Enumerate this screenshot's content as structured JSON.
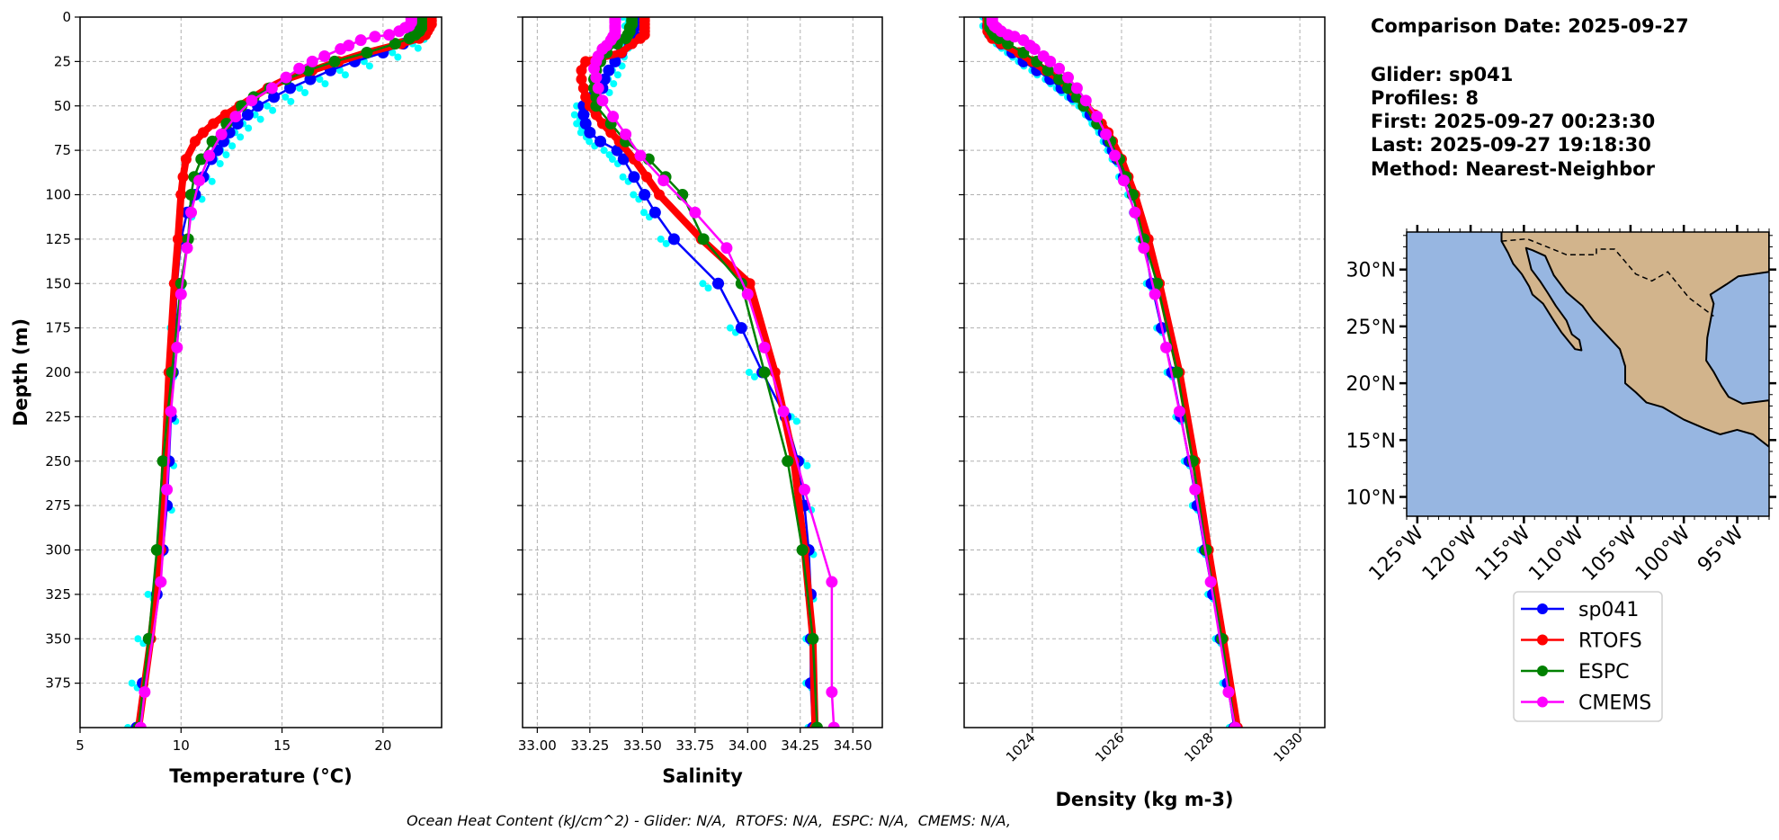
{
  "info": {
    "comparison_date": "Comparison Date: 2025-09-27",
    "glider": "Glider: sp041",
    "profiles": "Profiles: 8",
    "first": "First: 2025-09-27 00:23:30",
    "last": "Last: 2025-09-27 19:18:30",
    "method": "Method: Nearest-Neighbor"
  },
  "footer": "Ocean Heat Content (kJ/cm^2) - Glider: N/A,  RTOFS: N/A,  ESPC: N/A,  CMEMS: N/A,",
  "legend": {
    "placement": "below-map",
    "entries": [
      {
        "label": "sp041",
        "color": "#0000ff"
      },
      {
        "label": "RTOFS",
        "color": "#ff0000"
      },
      {
        "label": "ESPC",
        "color": "#008000"
      },
      {
        "label": "CMEMS",
        "color": "#ff00ff"
      }
    ]
  },
  "chart_data": [
    {
      "type": "line",
      "variable": "temp",
      "xlabel": "Temperature (°C)",
      "ylabel": "Depth (m)",
      "xlim": [
        5,
        22.9
      ],
      "ylim": [
        400,
        0
      ],
      "grid": true,
      "xticks": [
        5,
        10,
        15,
        20
      ],
      "xtick_labels": [
        "5",
        "10",
        "15",
        "20"
      ],
      "yticks": [
        0,
        25,
        50,
        75,
        100,
        125,
        150,
        175,
        200,
        225,
        250,
        275,
        300,
        325,
        350,
        375
      ],
      "ytick_labels": [
        "0",
        "25",
        "50",
        "75",
        "100",
        "125",
        "150",
        "175",
        "200",
        "225",
        "250",
        "275",
        "300",
        "325",
        "350",
        "375"
      ],
      "xtick_rotation": 0
    },
    {
      "type": "line",
      "variable": "sal",
      "xlabel": "Salinity",
      "ylabel": "",
      "xlim": [
        32.93,
        34.64
      ],
      "ylim": [
        400,
        0
      ],
      "grid": true,
      "xticks": [
        33.0,
        33.25,
        33.5,
        33.75,
        34.0,
        34.25,
        34.5
      ],
      "xtick_labels": [
        "33.00",
        "33.25",
        "33.50",
        "33.75",
        "34.00",
        "34.25",
        "34.50"
      ],
      "yticks": [
        0,
        25,
        50,
        75,
        100,
        125,
        150,
        175,
        200,
        225,
        250,
        275,
        300,
        325,
        350,
        375
      ],
      "ytick_labels": [],
      "xtick_rotation": 0
    },
    {
      "type": "line",
      "variable": "dens",
      "xlabel": "Density (kg m-3)",
      "ylabel": "",
      "xlim": [
        1022.47,
        1030.56
      ],
      "ylim": [
        400,
        0
      ],
      "grid": true,
      "xticks": [
        1024,
        1026,
        1028,
        1030
      ],
      "xtick_labels": [
        "1024",
        "1026",
        "1028",
        "1030"
      ],
      "yticks": [
        0,
        25,
        50,
        75,
        100,
        125,
        150,
        175,
        200,
        225,
        250,
        275,
        300,
        325,
        350,
        375
      ],
      "ytick_labels": [],
      "xtick_rotation": 45
    }
  ],
  "series": [
    {
      "id": "sp041-profiles",
      "color": "#00ffff",
      "style": "scatter-profiles",
      "depth": [
        0,
        5,
        10,
        15,
        20,
        25,
        30,
        35,
        40,
        45,
        50,
        55,
        60,
        65,
        70,
        75,
        80,
        90,
        100,
        110,
        125,
        150,
        175,
        200,
        225,
        250,
        275,
        300,
        325,
        350,
        375,
        400
      ],
      "temp": [
        21.6,
        21.9,
        21.9,
        21.6,
        20.6,
        19.2,
        18.0,
        17.0,
        16.0,
        15.3,
        14.4,
        13.8,
        13.2,
        12.8,
        12.4,
        12.1,
        11.8,
        11.4,
        10.9,
        10.4,
        10.1,
        9.9,
        9.6,
        9.5,
        9.6,
        9.5,
        9.4,
        8.9,
        8.5,
        8.0,
        7.7,
        7.5
      ],
      "sal": [
        33.42,
        33.43,
        33.44,
        33.42,
        33.4,
        33.39,
        33.37,
        33.35,
        33.33,
        33.25,
        33.2,
        33.19,
        33.2,
        33.22,
        33.26,
        33.33,
        33.37,
        33.42,
        33.47,
        33.52,
        33.6,
        33.8,
        33.93,
        34.02,
        34.22,
        34.27,
        34.29,
        34.3,
        34.3,
        34.29,
        34.29,
        34.3
      ],
      "dens": [
        1022.95,
        1022.95,
        1023.05,
        1023.25,
        1023.5,
        1023.75,
        1024.05,
        1024.35,
        1024.6,
        1024.85,
        1025.1,
        1025.25,
        1025.4,
        1025.55,
        1025.65,
        1025.75,
        1025.85,
        1026.0,
        1026.2,
        1026.3,
        1026.45,
        1026.62,
        1026.85,
        1027.08,
        1027.28,
        1027.47,
        1027.65,
        1027.82,
        1028.0,
        1028.17,
        1028.33,
        1028.48
      ]
    },
    {
      "id": "sp041",
      "name": "sp041",
      "color": "#0000ff",
      "style": "line-marker",
      "depth": [
        0,
        5,
        10,
        15,
        20,
        25,
        30,
        35,
        40,
        45,
        50,
        55,
        60,
        65,
        70,
        75,
        80,
        90,
        100,
        110,
        125,
        150,
        175,
        200,
        225,
        250,
        275,
        300,
        325,
        350,
        375,
        400
      ],
      "temp": [
        21.8,
        21.7,
        21.5,
        21.0,
        20.0,
        18.6,
        17.4,
        16.4,
        15.4,
        14.6,
        13.8,
        13.3,
        12.8,
        12.4,
        12.1,
        11.8,
        11.5,
        11.1,
        10.7,
        10.3,
        10.0,
        9.8,
        9.7,
        9.6,
        9.5,
        9.4,
        9.3,
        9.1,
        8.8,
        8.4,
        8.1,
        7.8
      ],
      "sal": [
        33.47,
        33.47,
        33.46,
        33.44,
        33.4,
        33.37,
        33.34,
        33.32,
        33.31,
        33.26,
        33.22,
        33.22,
        33.23,
        33.25,
        33.3,
        33.38,
        33.41,
        33.46,
        33.51,
        33.56,
        33.65,
        33.86,
        33.97,
        34.07,
        34.18,
        34.24,
        34.27,
        34.29,
        34.3,
        34.3,
        34.3,
        34.31
      ],
      "dens": [
        1023.0,
        1023.0,
        1023.1,
        1023.3,
        1023.55,
        1023.8,
        1024.1,
        1024.4,
        1024.65,
        1024.9,
        1025.15,
        1025.3,
        1025.45,
        1025.6,
        1025.7,
        1025.8,
        1025.9,
        1026.05,
        1026.25,
        1026.35,
        1026.5,
        1026.67,
        1026.9,
        1027.13,
        1027.33,
        1027.52,
        1027.7,
        1027.87,
        1028.05,
        1028.22,
        1028.38,
        1028.53
      ]
    },
    {
      "id": "rtofs",
      "name": "RTOFS",
      "color": "#ff0000",
      "style": "thick-line-marker",
      "depth": [
        0,
        2,
        4,
        6,
        8,
        10,
        12,
        15,
        20,
        25,
        30,
        35,
        40,
        45,
        50,
        55,
        60,
        65,
        70,
        80,
        90,
        100,
        125,
        150,
        200,
        250,
        300,
        350,
        400
      ],
      "temp": [
        22.4,
        22.4,
        22.4,
        22.3,
        22.2,
        22.1,
        21.8,
        20.9,
        19.2,
        17.8,
        16.5,
        15.2,
        14.3,
        13.6,
        12.9,
        12.2,
        11.6,
        11.1,
        10.7,
        10.25,
        10.1,
        10.0,
        9.85,
        9.67,
        9.4,
        9.2,
        9.0,
        8.5,
        7.9
      ],
      "sal": [
        33.51,
        33.51,
        33.51,
        33.51,
        33.51,
        33.51,
        33.49,
        33.45,
        33.4,
        33.23,
        33.21,
        33.21,
        33.22,
        33.23,
        33.25,
        33.28,
        33.31,
        33.35,
        33.39,
        33.46,
        33.52,
        33.58,
        33.78,
        34.01,
        34.13,
        34.22,
        34.27,
        34.31,
        34.32
      ],
      "dens": [
        1023.0,
        1023.0,
        1023.0,
        1023.0,
        1023.0,
        1023.05,
        1023.1,
        1023.3,
        1023.7,
        1024.0,
        1024.3,
        1024.6,
        1024.8,
        1025.0,
        1025.2,
        1025.4,
        1025.55,
        1025.7,
        1025.8,
        1026.0,
        1026.15,
        1026.3,
        1026.6,
        1026.85,
        1027.3,
        1027.65,
        1027.95,
        1028.28,
        1028.6
      ]
    },
    {
      "id": "espc",
      "name": "ESPC",
      "color": "#008000",
      "style": "line-marker",
      "depth": [
        0,
        2,
        4,
        6,
        8,
        10,
        12,
        15,
        20,
        25,
        30,
        35,
        40,
        45,
        50,
        60,
        70,
        80,
        90,
        100,
        125,
        150,
        200,
        250,
        300,
        350,
        400
      ],
      "temp": [
        21.9,
        21.9,
        21.9,
        21.9,
        21.8,
        21.6,
        21.3,
        20.6,
        19.2,
        17.6,
        16.3,
        15.2,
        14.4,
        13.6,
        13.0,
        12.25,
        11.55,
        11.0,
        10.65,
        10.5,
        10.35,
        10.0,
        9.55,
        9.1,
        8.8,
        8.4,
        7.9
      ],
      "sal": [
        33.45,
        33.45,
        33.45,
        33.44,
        33.44,
        33.43,
        33.42,
        33.38,
        33.33,
        33.3,
        33.28,
        33.27,
        33.27,
        33.28,
        33.28,
        33.35,
        33.42,
        33.53,
        33.61,
        33.69,
        33.79,
        33.97,
        34.08,
        34.19,
        34.26,
        34.31,
        34.33
      ],
      "dens": [
        1023.05,
        1023.05,
        1023.05,
        1023.05,
        1023.1,
        1023.15,
        1023.25,
        1023.45,
        1023.8,
        1024.1,
        1024.35,
        1024.6,
        1024.8,
        1025.0,
        1025.15,
        1025.45,
        1025.75,
        1025.95,
        1026.1,
        1026.25,
        1026.5,
        1026.8,
        1027.25,
        1027.6,
        1027.9,
        1028.25,
        1028.55
      ]
    },
    {
      "id": "cmems",
      "name": "CMEMS",
      "color": "#ff00ff",
      "style": "line-marker",
      "depth": [
        0,
        1,
        2,
        3,
        5,
        6,
        8,
        10,
        11,
        13,
        16,
        18,
        22,
        25,
        29,
        34,
        40,
        47,
        56,
        66,
        78,
        92,
        110,
        130,
        156,
        186,
        222,
        266,
        318,
        380,
        400
      ],
      "temp": [
        21.4,
        21.4,
        21.4,
        21.4,
        21.3,
        21.1,
        20.8,
        20.3,
        19.6,
        18.9,
        18.3,
        17.9,
        17.1,
        16.5,
        15.85,
        15.2,
        14.5,
        13.5,
        12.7,
        12.0,
        11.4,
        10.9,
        10.5,
        10.3,
        10.0,
        9.8,
        9.5,
        9.3,
        9.0,
        8.2,
        8.0
      ],
      "sal": [
        33.37,
        33.37,
        33.37,
        33.37,
        33.37,
        33.37,
        33.37,
        33.37,
        33.36,
        33.35,
        33.33,
        33.31,
        33.29,
        33.28,
        33.27,
        33.28,
        33.29,
        33.31,
        33.36,
        33.42,
        33.49,
        33.6,
        33.75,
        33.9,
        34.0,
        34.08,
        34.17,
        34.27,
        34.4,
        34.4,
        34.41
      ],
      "dens": [
        1023.1,
        1023.1,
        1023.1,
        1023.1,
        1023.15,
        1023.2,
        1023.3,
        1023.45,
        1023.6,
        1023.8,
        1023.95,
        1024.05,
        1024.25,
        1024.4,
        1024.6,
        1024.8,
        1025.0,
        1025.2,
        1025.45,
        1025.65,
        1025.85,
        1026.05,
        1026.3,
        1026.5,
        1026.75,
        1027.0,
        1027.3,
        1027.65,
        1028.0,
        1028.4,
        1028.55
      ]
    }
  ],
  "map": {
    "lon_range": [
      -126,
      -92
    ],
    "lat_range": [
      8.3,
      33.3
    ],
    "ocean_color": "#97b6e1",
    "land_color": "#d2b48c",
    "lat_ticks": [
      10,
      15,
      20,
      25,
      30
    ],
    "lat_labels": [
      "10°N",
      "15°N",
      "20°N",
      "25°N",
      "30°N"
    ],
    "lon_ticks": [
      -125,
      -120,
      -115,
      -110,
      -105,
      -100,
      -95
    ],
    "lon_labels": [
      "125°W",
      "120°W",
      "115°W",
      "110°W",
      "105°W",
      "100°W",
      "95°W"
    ],
    "land": [
      [
        -117.1,
        33.4
      ],
      [
        -117.1,
        32.5
      ],
      [
        -116.5,
        31.5
      ],
      [
        -116,
        30.5
      ],
      [
        -115.2,
        29.6
      ],
      [
        -114.5,
        28.5
      ],
      [
        -114.2,
        27.8
      ],
      [
        -113.2,
        27.0
      ],
      [
        -112.2,
        25.5
      ],
      [
        -111.5,
        24.5
      ],
      [
        -110.2,
        23.0
      ],
      [
        -109.6,
        22.9
      ],
      [
        -109.8,
        23.8
      ],
      [
        -110.5,
        24.3
      ],
      [
        -111.0,
        25.5
      ],
      [
        -112.0,
        26.8
      ],
      [
        -112.8,
        28.0
      ],
      [
        -113.5,
        29.0
      ],
      [
        -114.3,
        30.0
      ],
      [
        -114.8,
        31.9
      ],
      [
        -114.2,
        31.7
      ],
      [
        -113.0,
        31.2
      ],
      [
        -112.2,
        29.5
      ],
      [
        -111.0,
        28.0
      ],
      [
        -109.5,
        26.8
      ],
      [
        -108.5,
        25.5
      ],
      [
        -107.5,
        24.5
      ],
      [
        -106.0,
        23.0
      ],
      [
        -105.5,
        21.5
      ],
      [
        -105.5,
        20.0
      ],
      [
        -104.5,
        19.2
      ],
      [
        -103.5,
        18.3
      ],
      [
        -102,
        17.9
      ],
      [
        -100,
        16.8
      ],
      [
        -98,
        16.0
      ],
      [
        -96.6,
        15.5
      ],
      [
        -95,
        15.9
      ],
      [
        -93.5,
        15.5
      ],
      [
        -92,
        14.4
      ],
      [
        -92,
        18.5
      ],
      [
        -94.5,
        18.2
      ],
      [
        -95.8,
        18.8
      ],
      [
        -96.5,
        19.8
      ],
      [
        -97.2,
        21
      ],
      [
        -97.9,
        22.0
      ],
      [
        -97.8,
        24
      ],
      [
        -97.4,
        26
      ],
      [
        -97.2,
        27
      ],
      [
        -97.5,
        27.8
      ],
      [
        -96,
        28.7
      ],
      [
        -94.9,
        29.4
      ],
      [
        -92,
        29.8
      ],
      [
        -92,
        33.4
      ]
    ],
    "border": [
      [
        -117.1,
        32.5
      ],
      [
        -114.7,
        32.7
      ],
      [
        -111,
        31.3
      ],
      [
        -108.2,
        31.3
      ],
      [
        -108.2,
        31.8
      ],
      [
        -106.5,
        31.8
      ],
      [
        -104.5,
        29.6
      ],
      [
        -103,
        29
      ],
      [
        -101.5,
        29.8
      ],
      [
        -99.5,
        27.5
      ],
      [
        -97.2,
        25.9
      ]
    ]
  }
}
